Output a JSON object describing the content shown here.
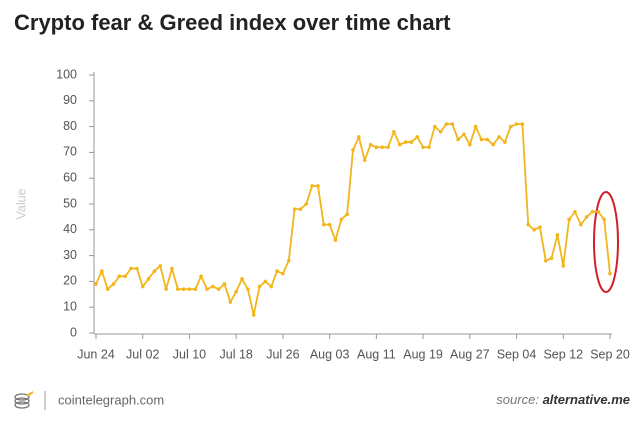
{
  "chart_data": {
    "type": "line",
    "title": "Crypto fear & Greed index over time chart",
    "y_label": "Value",
    "categories": [
      "Jun 24",
      null,
      null,
      null,
      null,
      null,
      null,
      null,
      "Jul 02",
      null,
      null,
      null,
      null,
      null,
      null,
      null,
      "Jul 10",
      null,
      null,
      null,
      null,
      null,
      null,
      null,
      "Jul 18",
      null,
      null,
      null,
      null,
      null,
      null,
      null,
      "Jul 26",
      null,
      null,
      null,
      null,
      null,
      null,
      null,
      "Aug 03",
      null,
      null,
      null,
      null,
      null,
      null,
      null,
      "Aug 11",
      null,
      null,
      null,
      null,
      null,
      null,
      null,
      "Aug 19",
      null,
      null,
      null,
      null,
      null,
      null,
      null,
      "Aug 27",
      null,
      null,
      null,
      null,
      null,
      null,
      null,
      "Sep 04",
      null,
      null,
      null,
      null,
      null,
      null,
      null,
      "Sep 12",
      null,
      null,
      null,
      null,
      null,
      null,
      null,
      "Sep 20"
    ],
    "values": [
      19,
      24,
      17,
      19,
      22,
      22,
      25,
      25,
      18,
      21,
      24,
      26,
      17,
      25,
      17,
      17,
      17,
      17,
      22,
      17,
      18,
      17,
      19,
      12,
      16,
      21,
      17,
      7,
      18,
      20,
      18,
      24,
      23,
      28,
      48,
      48,
      50,
      57,
      57,
      42,
      42,
      36,
      44,
      46,
      71,
      76,
      67,
      73,
      72,
      72,
      72,
      78,
      73,
      74,
      74,
      76,
      72,
      72,
      80,
      78,
      81,
      81,
      75,
      77,
      73,
      80,
      75,
      75,
      73,
      76,
      74,
      80,
      81,
      81,
      42,
      40,
      41,
      28,
      29,
      38,
      26,
      44,
      47,
      42,
      45,
      47,
      47,
      44,
      23
    ],
    "color": "#f2b51b",
    "ylim": [
      0,
      100
    ],
    "yticks": [
      0,
      10,
      20,
      30,
      40,
      50,
      60,
      70,
      80,
      90,
      100
    ],
    "grid": false
  },
  "footer": {
    "brand": "cointelegraph.com",
    "source_prefix": "source:",
    "source_name": "alternative.me"
  }
}
